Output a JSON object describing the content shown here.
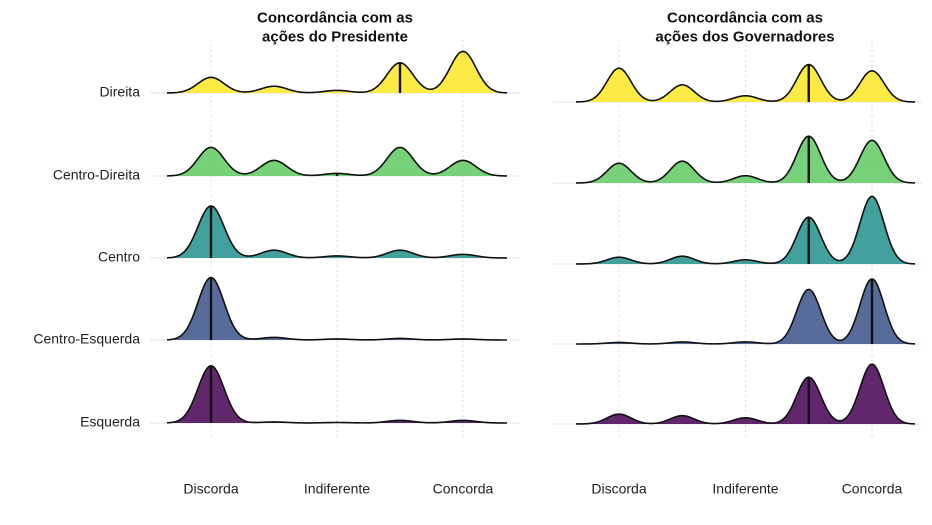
{
  "chart_data": [
    {
      "type": "ridgeline",
      "title_lines": [
        "Concordância com as",
        "ações do Presidente"
      ],
      "x_categories": [
        "Discorda",
        "Indiferente",
        "Concorda"
      ],
      "y_categories": [
        "Direita",
        "Centro-Direita",
        "Centro",
        "Centro-Esquerda",
        "Esquerda"
      ],
      "colors": [
        "#fde725",
        "#5ec962",
        "#21918c",
        "#3b528b",
        "#440154"
      ],
      "peak_positions": [
        1,
        2,
        3,
        4,
        5
      ],
      "series": [
        {
          "peaks": [
            0.3,
            0.13,
            0.05,
            0.58,
            0.8
          ],
          "median": 4
        },
        {
          "peaks": [
            0.55,
            0.3,
            0.05,
            0.55,
            0.3
          ],
          "median": 3
        },
        {
          "peaks": [
            1.0,
            0.15,
            0.04,
            0.15,
            0.07
          ],
          "median": 1
        },
        {
          "peaks": [
            1.2,
            0.05,
            0.02,
            0.03,
            0.02
          ],
          "median": 1
        },
        {
          "peaks": [
            1.1,
            0.02,
            0.01,
            0.05,
            0.05
          ],
          "median": 1
        }
      ]
    },
    {
      "type": "ridgeline",
      "title_lines": [
        "Concordância com as",
        "ações dos Governadores"
      ],
      "x_categories": [
        "Discorda",
        "Indiferente",
        "Concorda"
      ],
      "y_categories": [
        "Direita",
        "Centro-Direita",
        "Centro",
        "Centro-Esquerda",
        "Esquerda"
      ],
      "colors": [
        "#fde725",
        "#5ec962",
        "#21918c",
        "#3b528b",
        "#440154"
      ],
      "peak_positions": [
        1,
        2,
        3,
        4,
        5
      ],
      "series": [
        {
          "peaks": [
            0.65,
            0.33,
            0.12,
            0.72,
            0.6
          ],
          "median": 4
        },
        {
          "peaks": [
            0.38,
            0.42,
            0.14,
            0.9,
            0.82
          ],
          "median": 4
        },
        {
          "peaks": [
            0.13,
            0.15,
            0.08,
            0.9,
            1.3
          ],
          "median": 4
        },
        {
          "peaks": [
            0.03,
            0.04,
            0.04,
            1.05,
            1.25
          ],
          "median": 5
        },
        {
          "peaks": [
            0.19,
            0.16,
            0.12,
            0.9,
            1.15
          ],
          "median": 4
        }
      ]
    }
  ]
}
